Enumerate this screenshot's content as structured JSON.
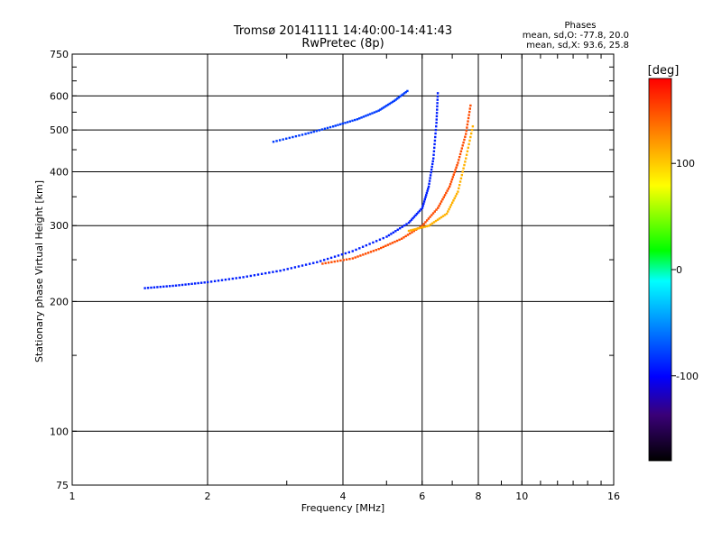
{
  "chart_data": {
    "type": "scatter",
    "title": "Tromsø 20141111 14:40:00-14:41:43",
    "subtitle": "RwPretec (8p)",
    "xlabel": "Frequency [MHz]",
    "ylabel": "Stationary phase Virtual Height [km]",
    "x_scale": "log",
    "y_scale": "log",
    "xlim": [
      1,
      16
    ],
    "ylim": [
      75,
      750
    ],
    "x_ticks": [
      {
        "value": 1,
        "label": "1"
      },
      {
        "value": 2,
        "label": "2"
      },
      {
        "value": 4,
        "label": "4"
      },
      {
        "value": 6,
        "label": "6"
      },
      {
        "value": 8,
        "label": "8"
      },
      {
        "value": 10,
        "label": "10"
      },
      {
        "value": 16,
        "label": "16"
      }
    ],
    "x_gridlines": [
      2,
      4,
      6,
      8,
      10
    ],
    "y_ticks": [
      {
        "value": 75,
        "label": "75"
      },
      {
        "value": 100,
        "label": "100"
      },
      {
        "value": 200,
        "label": "200"
      },
      {
        "value": 300,
        "label": "300"
      },
      {
        "value": 400,
        "label": "400"
      },
      {
        "value": 500,
        "label": "500"
      },
      {
        "value": 600,
        "label": "600"
      },
      {
        "value": 750,
        "label": "750"
      }
    ],
    "y_gridlines": [
      100,
      200,
      300,
      400,
      500,
      600
    ],
    "grid": true,
    "legend_title": "Phases",
    "legend_lines": [
      "mean, sd,O: -77.8, 20.0",
      "mean, sd,X:  93.6, 25.8"
    ],
    "colorbar": {
      "label": "[deg]",
      "range": [
        -180,
        180
      ],
      "ticks": [
        {
          "value": 100,
          "label": "100"
        },
        {
          "value": 0,
          "label": "0"
        },
        {
          "value": -100,
          "label": "-100"
        }
      ],
      "colors": [
        "#000000",
        "#3a0078",
        "#0000ff",
        "#00ffff",
        "#00ff00",
        "#ffff00",
        "#ff8000",
        "#ff0000"
      ]
    },
    "series": [
      {
        "trace": "O",
        "phase": -90,
        "x": [
          1.45,
          1.7,
          2.0,
          2.4,
          2.9,
          3.5,
          4.2,
          5.0,
          5.6,
          6.0,
          6.2,
          6.35,
          6.45,
          6.5
        ],
        "y": [
          215,
          218,
          222,
          228,
          236,
          247,
          262,
          283,
          305,
          330,
          370,
          430,
          520,
          620
        ]
      },
      {
        "trace": "X",
        "phase": 150,
        "x": [
          3.6,
          4.2,
          4.8,
          5.4,
          6.0,
          6.5,
          6.9,
          7.2,
          7.5,
          7.7
        ],
        "y": [
          245,
          252,
          265,
          280,
          300,
          330,
          370,
          420,
          490,
          580
        ]
      },
      {
        "trace": "X",
        "phase": 110,
        "x": [
          5.6,
          6.2,
          6.8,
          7.2,
          7.5,
          7.8
        ],
        "y": [
          292,
          300,
          320,
          360,
          430,
          520
        ]
      },
      {
        "trace": "O",
        "phase": -80,
        "x": [
          2.8,
          3.3,
          3.8,
          4.3,
          4.8,
          5.2,
          5.6
        ],
        "y": [
          470,
          490,
          510,
          530,
          555,
          585,
          620
        ]
      }
    ]
  }
}
